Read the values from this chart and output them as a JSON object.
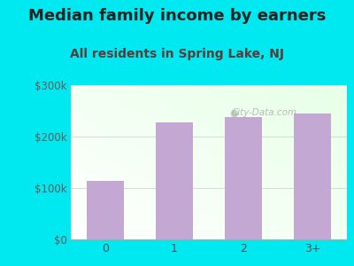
{
  "title": "Median family income by earners",
  "subtitle": "All residents in Spring Lake, NJ",
  "categories": [
    "0",
    "1",
    "2",
    "3+"
  ],
  "values": [
    113000,
    228000,
    238000,
    245000
  ],
  "bar_color": "#c4a8d4",
  "ylim": [
    0,
    300000
  ],
  "ytick_labels": [
    "$0",
    "$100k",
    "$200k",
    "$300k"
  ],
  "ytick_values": [
    0,
    100000,
    200000,
    300000
  ],
  "background_outer": "#00e8f0",
  "watermark": "City-Data.com",
  "title_fontsize": 13,
  "subtitle_fontsize": 10,
  "title_color": "#222222",
  "subtitle_color": "#5a3a3a",
  "tick_label_color": "#6a5a5a"
}
